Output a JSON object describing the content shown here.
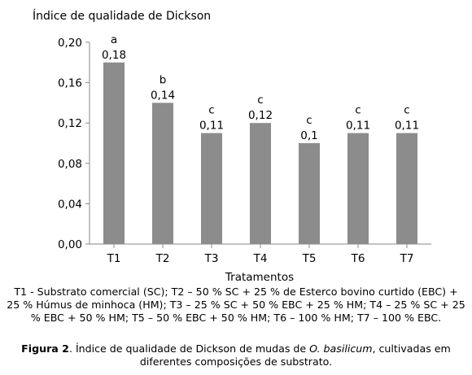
{
  "chart_data": {
    "type": "bar",
    "ylabel": "Índice de qualidade de Dickson",
    "xlabel": "Tratamentos",
    "categories": [
      "T1",
      "T2",
      "T3",
      "T4",
      "T5",
      "T6",
      "T7"
    ],
    "values": [
      0.18,
      0.14,
      0.11,
      0.12,
      0.1,
      0.11,
      0.11
    ],
    "value_labels": [
      "0,18",
      "0,14",
      "0,11",
      "0,12",
      "0,1",
      "0,11",
      "0,11"
    ],
    "letters": [
      "a",
      "b",
      "c",
      "c",
      "c",
      "c",
      "c"
    ],
    "ylim": [
      0,
      0.2
    ],
    "yticks": [
      0,
      0.04,
      0.08,
      0.12,
      0.16,
      0.2
    ],
    "ytick_labels": [
      "0,00",
      "0,04",
      "0,08",
      "0,12",
      "0,16",
      "0,20"
    ],
    "bar_color": "#8c8c8c",
    "grid": false
  },
  "caption": {
    "treatments_text": "T1 - Substrato comercial (SC); T2 – 50 % SC + 25 % de Esterco bovino curtido (EBC) + 25 % Húmus de minhoca (HM); T3 – 25 % SC + 50 % EBC + 25 % HM; T4 – 25 % SC + 25 % EBC + 50 % HM; T5 – 50 % EBC + 50 % HM; T6 – 100 % HM; T7 – 100 % EBC.",
    "figure_label": "Figura 2",
    "figure_text_before": ". Índice de qualidade de Dickson de mudas de ",
    "figure_species": "O. basilicum",
    "figure_text_after": ", cultivadas em diferentes composições de substrato."
  }
}
